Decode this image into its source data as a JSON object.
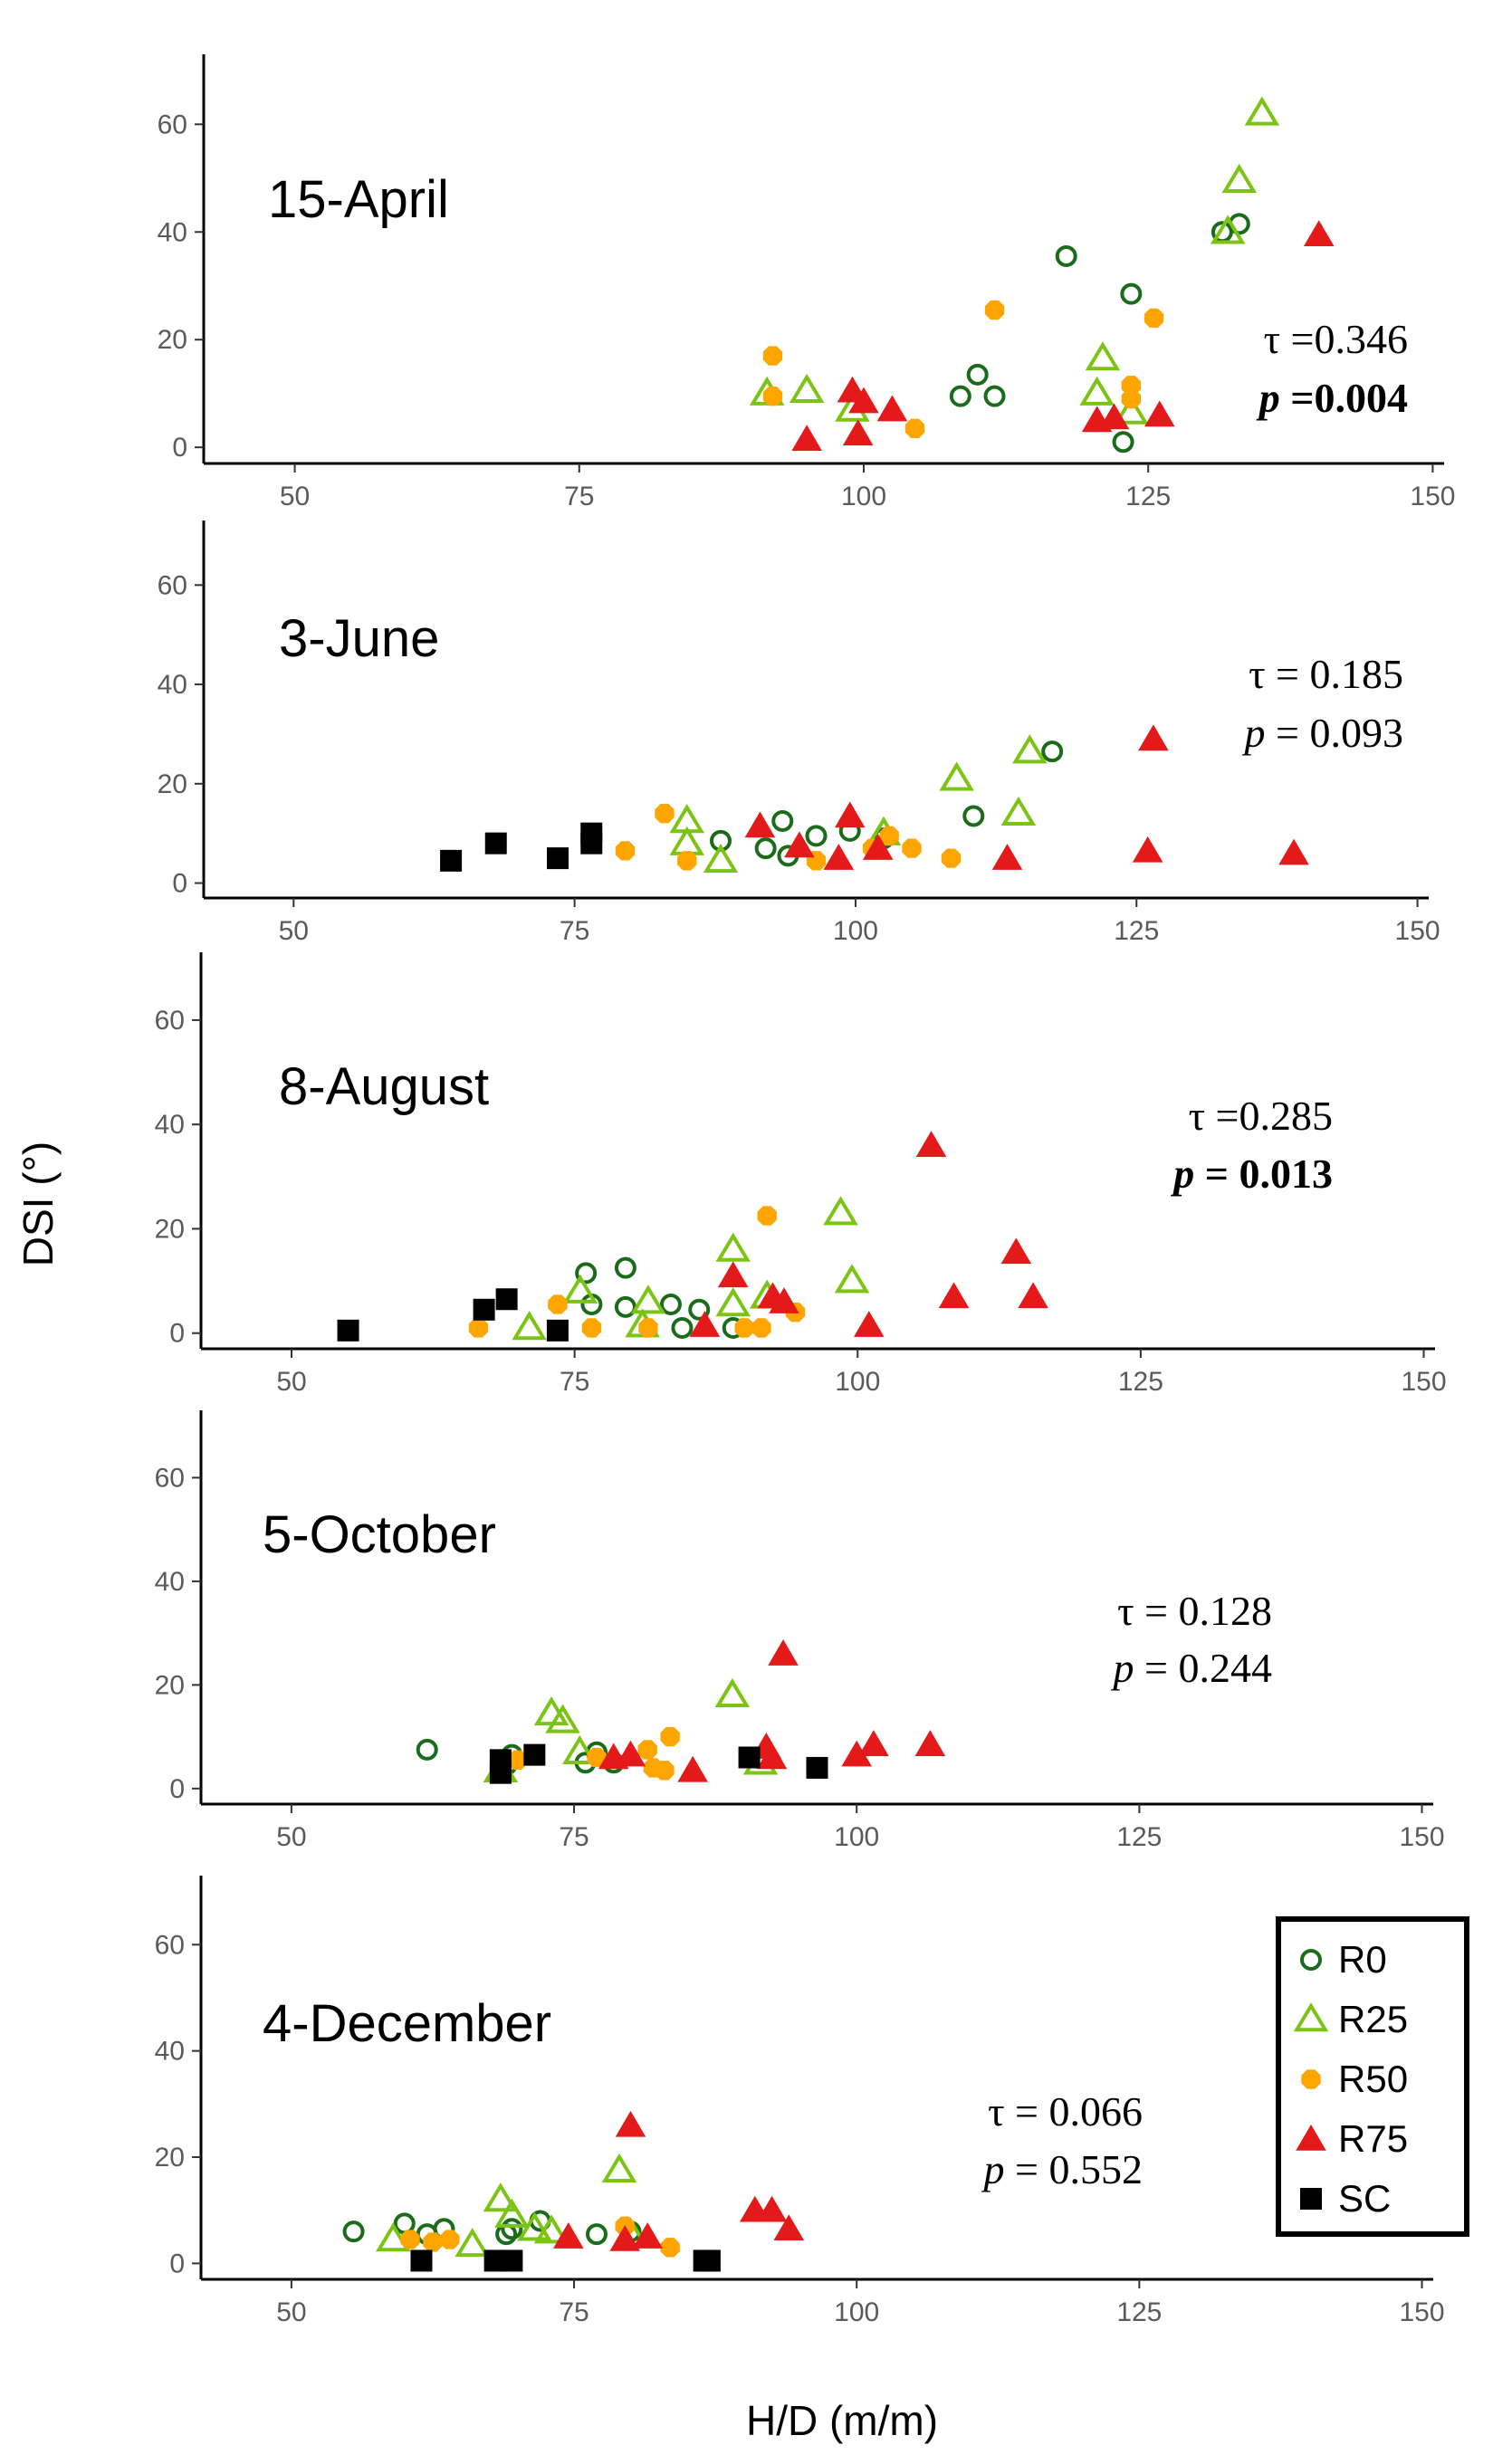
{
  "chart_data": {
    "type": "scatter",
    "xlabel": "H/D (m/m)",
    "ylabel": "DSI (°)",
    "xlim": [
      42,
      151
    ],
    "ylim": [
      -3,
      73
    ],
    "x_ticks": [
      "50",
      "75",
      "100",
      "125",
      "150"
    ],
    "y_ticks": [
      "0",
      "20",
      "40",
      "60"
    ],
    "grid": false,
    "legend_position": "bottom-right",
    "legend": [
      {
        "key": "R0",
        "label": "R0"
      },
      {
        "key": "R25",
        "label": "R25"
      },
      {
        "key": "R50",
        "label": "R50"
      },
      {
        "key": "R75",
        "label": "R75"
      },
      {
        "key": "SC",
        "label": "SC"
      }
    ],
    "colors": {
      "R0": "#1a6b1a",
      "R25": "#7cc414",
      "R50": "#ffa500",
      "R75": "#e41a1a",
      "SC": "#000000"
    },
    "panels": [
      {
        "title": "15-April",
        "tau_label": "τ =0.346",
        "p_italic": "p",
        "p_rest": " =0.004",
        "p_bold": true,
        "series": {
          "R0": [
            [
              117.8,
              35.5
            ],
            [
              123.5,
              28.5
            ],
            [
              133.0,
              41.5
            ],
            [
              131.5,
              40.0
            ],
            [
              110.0,
              13.5
            ],
            [
              108.5,
              9.5
            ],
            [
              111.5,
              9.5
            ],
            [
              122.8,
              1.0
            ]
          ],
          "R25": [
            [
              135.0,
              62.0
            ],
            [
              133.0,
              49.5
            ],
            [
              132.0,
              40.0
            ],
            [
              121.0,
              16.5
            ],
            [
              120.5,
              10.0
            ],
            [
              123.5,
              6.5
            ],
            [
              91.5,
              10.0
            ],
            [
              95.0,
              10.5
            ],
            [
              99.0,
              7.0
            ]
          ],
          "R50": [
            [
              111.5,
              25.5
            ],
            [
              125.5,
              24.0
            ],
            [
              92.0,
              17.0
            ],
            [
              92.0,
              9.5
            ],
            [
              123.5,
              11.5
            ],
            [
              123.5,
              9.0
            ],
            [
              104.5,
              3.5
            ]
          ],
          "R75": [
            [
              140.0,
              39.5
            ],
            [
              99.0,
              10.5
            ],
            [
              100.0,
              8.5
            ],
            [
              102.5,
              7.0
            ],
            [
              95.0,
              1.5
            ],
            [
              99.5,
              2.5
            ],
            [
              120.5,
              5.0
            ],
            [
              122.0,
              5.5
            ],
            [
              126.0,
              6.0
            ]
          ],
          "SC": []
        }
      },
      {
        "title": "3-June",
        "tau_label": "τ = 0.185",
        "p_italic": "p",
        "p_rest": " = 0.093",
        "p_bold": false,
        "series": {
          "R0": [
            [
              117.5,
              26.5
            ],
            [
              110.5,
              13.5
            ],
            [
              88.0,
              8.5
            ],
            [
              92.0,
              7.0
            ],
            [
              93.5,
              12.5
            ],
            [
              94.0,
              5.5
            ],
            [
              96.5,
              9.5
            ],
            [
              99.5,
              10.5
            ],
            [
              102.5,
              9.0
            ]
          ],
          "R25": [
            [
              115.5,
              26.5
            ],
            [
              109.0,
              21.0
            ],
            [
              114.5,
              14.0
            ],
            [
              85.0,
              12.5
            ],
            [
              85.0,
              8.0
            ],
            [
              88.0,
              4.5
            ],
            [
              102.5,
              10.0
            ]
          ],
          "R50": [
            [
              79.5,
              6.5
            ],
            [
              83.0,
              14.0
            ],
            [
              85.0,
              4.5
            ],
            [
              96.5,
              4.5
            ],
            [
              101.5,
              7.0
            ],
            [
              103.0,
              9.5
            ],
            [
              105.0,
              7.0
            ],
            [
              108.5,
              5.0
            ]
          ],
          "R75": [
            [
              126.5,
              29.0
            ],
            [
              91.5,
              11.5
            ],
            [
              95.0,
              7.5
            ],
            [
              99.5,
              13.5
            ],
            [
              98.5,
              5.0
            ],
            [
              102.0,
              7.0
            ],
            [
              113.5,
              5.0
            ],
            [
              126.0,
              6.5
            ],
            [
              139.0,
              6.0
            ]
          ],
          "SC": [
            [
              64.0,
              4.5
            ],
            [
              68.0,
              8.0
            ],
            [
              73.5,
              5.0
            ],
            [
              76.5,
              10.0
            ],
            [
              76.5,
              8.0
            ]
          ]
        }
      },
      {
        "title": "8-August",
        "tau_label": "τ =0.285",
        "p_italic": "p",
        "p_rest": " = 0.013",
        "p_bold": true,
        "series": {
          "R0": [
            [
              76.0,
              11.5
            ],
            [
              79.5,
              12.5
            ],
            [
              79.5,
              5.0
            ],
            [
              83.5,
              5.5
            ],
            [
              84.5,
              1.0
            ],
            [
              86.0,
              4.5
            ],
            [
              89.0,
              1.0
            ],
            [
              76.5,
              5.5
            ]
          ],
          "R25": [
            [
              98.5,
              23.0
            ],
            [
              89.0,
              16.0
            ],
            [
              99.5,
              10.0
            ],
            [
              75.5,
              8.0
            ],
            [
              81.5,
              6.0
            ],
            [
              81.0,
              1.5
            ],
            [
              71.0,
              1.0
            ],
            [
              89.0,
              5.5
            ],
            [
              92.0,
              7.0
            ]
          ],
          "R50": [
            [
              92.0,
              22.5
            ],
            [
              73.5,
              5.5
            ],
            [
              66.5,
              1.0
            ],
            [
              76.5,
              1.0
            ],
            [
              81.5,
              1.0
            ],
            [
              90.0,
              1.0
            ],
            [
              91.5,
              1.0
            ],
            [
              94.5,
              4.0
            ]
          ],
          "R75": [
            [
              106.5,
              36.0
            ],
            [
              114.0,
              15.5
            ],
            [
              89.0,
              11.0
            ],
            [
              92.5,
              7.0
            ],
            [
              93.5,
              6.0
            ],
            [
              86.5,
              1.5
            ],
            [
              101.0,
              1.5
            ],
            [
              108.5,
              7.0
            ],
            [
              115.5,
              7.0
            ]
          ],
          "SC": [
            [
              55.0,
              0.5
            ],
            [
              67.0,
              4.5
            ],
            [
              69.0,
              6.5
            ],
            [
              73.5,
              0.5
            ]
          ]
        }
      },
      {
        "title": "5-October",
        "tau_label": "τ = 0.128",
        "p_italic": "p",
        "p_rest": " = 0.244",
        "p_bold": false,
        "series": {
          "R0": [
            [
              62.0,
              7.5
            ],
            [
              69.5,
              6.5
            ],
            [
              76.0,
              5.0
            ],
            [
              77.0,
              7.0
            ],
            [
              78.5,
              5.0
            ],
            [
              69.0,
              4.5
            ]
          ],
          "R25": [
            [
              73.0,
              14.5
            ],
            [
              74.0,
              13.0
            ],
            [
              75.5,
              7.0
            ],
            [
              89.0,
              18.0
            ],
            [
              91.5,
              5.0
            ],
            [
              68.5,
              3.5
            ]
          ],
          "R50": [
            [
              83.5,
              10.0
            ],
            [
              81.5,
              7.5
            ],
            [
              82.0,
              4.0
            ],
            [
              83.0,
              3.5
            ],
            [
              70.0,
              5.5
            ],
            [
              77.0,
              6.0
            ]
          ],
          "R75": [
            [
              93.5,
              26.0
            ],
            [
              80.0,
              6.5
            ],
            [
              78.5,
              6.0
            ],
            [
              85.5,
              3.5
            ],
            [
              92.0,
              8.0
            ],
            [
              92.5,
              6.0
            ],
            [
              100.0,
              6.5
            ],
            [
              101.5,
              8.5
            ],
            [
              106.5,
              8.5
            ]
          ],
          "SC": [
            [
              68.5,
              5.5
            ],
            [
              68.5,
              3.0
            ],
            [
              71.5,
              6.5
            ],
            [
              90.5,
              6.0
            ],
            [
              96.5,
              4.0
            ]
          ]
        }
      },
      {
        "title": "4-December",
        "tau_label": "τ = 0.066",
        "p_italic": "p",
        "p_rest": " = 0.552",
        "p_bold": false,
        "series": {
          "R0": [
            [
              55.5,
              6.0
            ],
            [
              60.0,
              7.5
            ],
            [
              62.0,
              5.5
            ],
            [
              63.5,
              6.5
            ],
            [
              69.0,
              5.5
            ],
            [
              69.5,
              6.5
            ],
            [
              72.0,
              8.0
            ],
            [
              77.0,
              5.5
            ],
            [
              80.0,
              6.0
            ]
          ],
          "R25": [
            [
              68.5,
              12.0
            ],
            [
              69.5,
              9.0
            ],
            [
              66.0,
              3.5
            ],
            [
              71.5,
              6.5
            ],
            [
              73.0,
              6.0
            ],
            [
              79.0,
              17.5
            ],
            [
              80.0,
              5.5
            ],
            [
              59.0,
              4.5
            ]
          ],
          "R50": [
            [
              79.5,
              7.0
            ],
            [
              83.5,
              3.0
            ],
            [
              62.5,
              4.0
            ],
            [
              64.0,
              4.5
            ],
            [
              60.5,
              4.5
            ]
          ],
          "R75": [
            [
              80.0,
              26.0
            ],
            [
              74.5,
              5.0
            ],
            [
              79.5,
              4.5
            ],
            [
              81.5,
              5.0
            ],
            [
              91.0,
              10.0
            ],
            [
              92.5,
              10.0
            ],
            [
              94.0,
              6.5
            ]
          ],
          "SC": [
            [
              61.5,
              0.5
            ],
            [
              68.0,
              0.5
            ],
            [
              69.5,
              0.5
            ],
            [
              86.5,
              0.5
            ],
            [
              87.0,
              0.5
            ]
          ]
        }
      }
    ]
  }
}
